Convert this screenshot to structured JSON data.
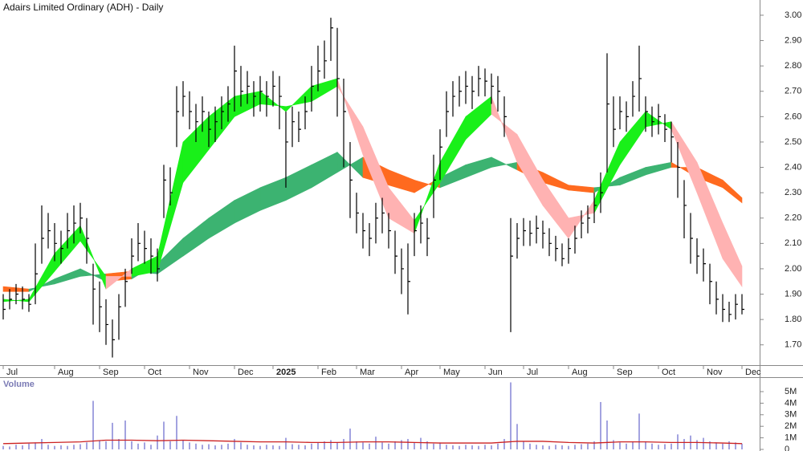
{
  "chart_data": {
    "type": "ohlc",
    "title": "Adairs Limited Ordinary (ADH) - Daily",
    "xlim": [
      -0.5,
      115.5
    ],
    "xticks": [
      {
        "value": 0,
        "label": "Jul"
      },
      {
        "value": 8,
        "label": "Aug"
      },
      {
        "value": 15,
        "label": "Sep"
      },
      {
        "value": 22,
        "label": "Oct"
      },
      {
        "value": 29,
        "label": "Nov"
      },
      {
        "value": 36,
        "label": "Dec"
      },
      {
        "value": 42,
        "label": "2025"
      },
      {
        "value": 49,
        "label": "Feb"
      },
      {
        "value": 55,
        "label": "Mar"
      },
      {
        "value": 62,
        "label": "Apr"
      },
      {
        "value": 68,
        "label": "May"
      },
      {
        "value": 75,
        "label": "Jun"
      },
      {
        "value": 81,
        "label": "Jul"
      },
      {
        "value": 88,
        "label": "Aug"
      },
      {
        "value": 95,
        "label": "Sep"
      },
      {
        "value": 102,
        "label": "Oct"
      },
      {
        "value": 109,
        "label": "Nov"
      },
      {
        "value": 115,
        "label": "Dec"
      }
    ],
    "ylim": [
      1.62,
      3.06
    ],
    "yticks": [
      {
        "value": 1.7,
        "label": "1.70"
      },
      {
        "value": 1.8,
        "label": "1.80"
      },
      {
        "value": 1.9,
        "label": "1.90"
      },
      {
        "value": 2.0,
        "label": "2.00"
      },
      {
        "value": 2.1,
        "label": "2.10"
      },
      {
        "value": 2.2,
        "label": "2.20"
      },
      {
        "value": 2.3,
        "label": "2.30"
      },
      {
        "value": 2.4,
        "label": "2.40"
      },
      {
        "value": 2.5,
        "label": "2.50"
      },
      {
        "value": 2.6,
        "label": "2.60"
      },
      {
        "value": 2.7,
        "label": "2.70"
      },
      {
        "value": 2.8,
        "label": "2.80"
      },
      {
        "value": 2.9,
        "label": "2.90"
      },
      {
        "value": 3.0,
        "label": "3.00"
      }
    ],
    "price": {
      "color": "#000000",
      "high": [
        1.9,
        1.92,
        1.94,
        1.93,
        1.9,
        2.1,
        2.25,
        2.22,
        2.18,
        2.15,
        2.22,
        2.25,
        2.26,
        2.2,
        2.02,
        1.95,
        1.88,
        1.8,
        1.9,
        2.0,
        2.12,
        2.18,
        2.15,
        2.12,
        2.08,
        2.41,
        2.4,
        2.72,
        2.74,
        2.7,
        2.65,
        2.68,
        2.62,
        2.64,
        2.68,
        2.72,
        2.88,
        2.8,
        2.78,
        2.74,
        2.76,
        2.74,
        2.78,
        2.76,
        2.62,
        2.64,
        2.62,
        2.68,
        2.8,
        2.88,
        2.9,
        2.99,
        2.95,
        2.75,
        2.5,
        2.3,
        2.22,
        2.18,
        2.26,
        2.28,
        2.22,
        2.15,
        2.08,
        2.1,
        2.22,
        2.25,
        2.2,
        2.45,
        2.55,
        2.7,
        2.74,
        2.76,
        2.78,
        2.76,
        2.8,
        2.79,
        2.77,
        2.76,
        2.68,
        2.2,
        2.18,
        2.2,
        2.19,
        2.21,
        2.19,
        2.16,
        2.13,
        2.1,
        2.12,
        2.17,
        2.23,
        2.25,
        2.3,
        2.38,
        2.85,
        2.68,
        2.68,
        2.66,
        2.74,
        2.88,
        2.68,
        2.64,
        2.65,
        2.61,
        2.58,
        2.5,
        2.35,
        2.22,
        2.12,
        2.08,
        2.02,
        1.95,
        1.9,
        1.87,
        1.9,
        1.9
      ],
      "low": [
        1.8,
        1.84,
        1.86,
        1.84,
        1.83,
        1.86,
        2.02,
        2.08,
        2.03,
        2.02,
        2.08,
        2.1,
        2.14,
        2.02,
        1.78,
        1.75,
        1.7,
        1.65,
        1.72,
        1.85,
        1.98,
        2.03,
        2.02,
        1.98,
        1.95,
        2.2,
        2.25,
        2.48,
        2.6,
        2.55,
        2.5,
        2.54,
        2.48,
        2.5,
        2.55,
        2.58,
        2.62,
        2.64,
        2.65,
        2.6,
        2.62,
        2.6,
        2.64,
        2.55,
        2.32,
        2.48,
        2.5,
        2.55,
        2.62,
        2.7,
        2.75,
        2.82,
        2.6,
        2.4,
        2.2,
        2.14,
        2.08,
        2.05,
        2.1,
        2.14,
        2.08,
        1.98,
        1.9,
        1.82,
        2.05,
        2.1,
        2.05,
        2.2,
        2.35,
        2.52,
        2.6,
        2.64,
        2.65,
        2.63,
        2.68,
        2.68,
        2.65,
        2.62,
        2.52,
        1.75,
        2.04,
        2.09,
        2.09,
        2.1,
        2.08,
        2.05,
        2.03,
        2.01,
        2.02,
        2.06,
        2.12,
        2.14,
        2.18,
        2.22,
        2.38,
        2.48,
        2.55,
        2.54,
        2.6,
        2.62,
        2.54,
        2.52,
        2.53,
        2.5,
        2.42,
        2.28,
        2.12,
        2.02,
        1.98,
        1.95,
        1.86,
        1.82,
        1.79,
        1.79,
        1.8,
        1.82
      ],
      "close": [
        1.84,
        1.88,
        1.9,
        1.88,
        1.86,
        1.98,
        2.12,
        2.15,
        2.1,
        2.08,
        2.15,
        2.18,
        2.2,
        2.12,
        1.92,
        1.85,
        1.78,
        1.72,
        1.85,
        1.95,
        2.05,
        2.1,
        2.08,
        2.05,
        2.0,
        2.35,
        2.3,
        2.62,
        2.68,
        2.62,
        2.58,
        2.62,
        2.55,
        2.58,
        2.62,
        2.65,
        2.78,
        2.7,
        2.72,
        2.68,
        2.7,
        2.68,
        2.72,
        2.68,
        2.5,
        2.58,
        2.55,
        2.62,
        2.72,
        2.78,
        2.82,
        2.95,
        2.75,
        2.62,
        2.35,
        2.22,
        2.15,
        2.12,
        2.2,
        2.22,
        2.15,
        2.05,
        2.0,
        1.95,
        2.15,
        2.18,
        2.12,
        2.35,
        2.48,
        2.62,
        2.68,
        2.7,
        2.72,
        2.7,
        2.75,
        2.74,
        2.72,
        2.7,
        2.6,
        2.05,
        2.12,
        2.15,
        2.14,
        2.16,
        2.14,
        2.1,
        2.08,
        2.04,
        2.08,
        2.12,
        2.18,
        2.2,
        2.25,
        2.3,
        2.65,
        2.55,
        2.62,
        2.6,
        2.68,
        2.75,
        2.62,
        2.58,
        2.6,
        2.55,
        2.52,
        2.4,
        2.25,
        2.12,
        2.05,
        2.02,
        1.95,
        1.88,
        1.84,
        1.82,
        1.86,
        1.84
      ]
    },
    "short_ribbon": {
      "up_color": "#19f019",
      "down_color": "#ffb2b2",
      "x": [
        0,
        4,
        8,
        12,
        16,
        20,
        24,
        28,
        32,
        36,
        40,
        44,
        48,
        52,
        56,
        60,
        64,
        68,
        72,
        76,
        80,
        84,
        88,
        92,
        96,
        100,
        104,
        108,
        112,
        115
      ],
      "fast": [
        1.87,
        1.88,
        2.06,
        2.17,
        1.92,
        2.0,
        2.05,
        2.5,
        2.6,
        2.68,
        2.7,
        2.62,
        2.72,
        2.75,
        2.45,
        2.2,
        2.14,
        2.42,
        2.6,
        2.68,
        2.42,
        2.25,
        2.12,
        2.27,
        2.5,
        2.62,
        2.55,
        2.3,
        2.04,
        1.93
      ],
      "slow": [
        1.88,
        1.87,
        1.99,
        2.11,
        1.97,
        1.97,
        1.99,
        2.34,
        2.47,
        2.6,
        2.65,
        2.64,
        2.66,
        2.72,
        2.56,
        2.32,
        2.19,
        2.34,
        2.51,
        2.61,
        2.53,
        2.35,
        2.2,
        2.22,
        2.41,
        2.56,
        2.58,
        2.42,
        2.18,
        2.01
      ]
    },
    "long_ribbon": {
      "up_color": "#3cb371",
      "down_color": "#ff6a1f",
      "x": [
        0,
        4,
        8,
        12,
        16,
        20,
        24,
        28,
        32,
        36,
        40,
        44,
        48,
        52,
        56,
        60,
        64,
        68,
        72,
        76,
        80,
        84,
        88,
        92,
        96,
        100,
        104,
        108,
        112,
        115
      ],
      "fast": [
        1.91,
        1.91,
        1.96,
        2.0,
        1.95,
        1.96,
        2.02,
        2.12,
        2.2,
        2.27,
        2.32,
        2.36,
        2.41,
        2.46,
        2.36,
        2.33,
        2.3,
        2.36,
        2.41,
        2.44,
        2.39,
        2.34,
        2.31,
        2.3,
        2.36,
        2.4,
        2.42,
        2.36,
        2.32,
        2.26
      ],
      "slow": [
        1.93,
        1.92,
        1.94,
        1.97,
        1.98,
        1.99,
        1.98,
        2.05,
        2.12,
        2.18,
        2.23,
        2.27,
        2.32,
        2.38,
        2.44,
        2.39,
        2.35,
        2.32,
        2.36,
        2.4,
        2.42,
        2.38,
        2.33,
        2.32,
        2.33,
        2.37,
        2.4,
        2.4,
        2.35,
        2.28
      ]
    },
    "volume": {
      "label": "Volume",
      "color": "#6666cc",
      "ylim": [
        0,
        6250000
      ],
      "yticks": [
        0,
        {
          "value": 1000000,
          "label": "1M"
        },
        {
          "value": 2000000,
          "label": "2M"
        },
        {
          "value": 3000000,
          "label": "3M"
        },
        {
          "value": 4000000,
          "label": "4M"
        },
        {
          "value": 5000000,
          "label": "5M"
        }
      ],
      "values": [
        300000,
        250000,
        400000,
        350000,
        500000,
        600000,
        900000,
        400000,
        300000,
        350000,
        300000,
        400000,
        450000,
        600000,
        4200000,
        800000,
        700000,
        2300000,
        900000,
        2500000,
        700000,
        500000,
        600000,
        400000,
        1200000,
        2400000,
        700000,
        2900000,
        800000,
        600000,
        500000,
        400000,
        450000,
        350000,
        400000,
        500000,
        900000,
        600000,
        400000,
        350000,
        300000,
        400000,
        350000,
        300000,
        1000000,
        450000,
        400000,
        350000,
        500000,
        600000,
        700000,
        800000,
        600000,
        900000,
        1800000,
        700000,
        600000,
        500000,
        1100000,
        600000,
        500000,
        700000,
        800000,
        900000,
        600000,
        1000000,
        700000,
        500000,
        600000,
        400000,
        350000,
        300000,
        400000,
        350000,
        300000,
        400000,
        350000,
        500000,
        900000,
        5800000,
        2200000,
        700000,
        500000,
        400000,
        350000,
        300000,
        400000,
        350000,
        300000,
        400000,
        450000,
        500000,
        700000,
        4100000,
        2500000,
        800000,
        600000,
        500000,
        700000,
        3100000,
        700000,
        500000,
        400000,
        450000,
        500000,
        1300000,
        900000,
        1200000,
        800000,
        1000000,
        700000,
        600000,
        500000,
        700000,
        600000,
        500000
      ],
      "ma": {
        "color": "#cc2222",
        "x": [
          0,
          4,
          8,
          12,
          16,
          20,
          24,
          28,
          32,
          36,
          40,
          44,
          48,
          52,
          56,
          60,
          64,
          68,
          72,
          76,
          80,
          84,
          88,
          92,
          96,
          100,
          104,
          108,
          112,
          115
        ],
        "values": [
          500000,
          550000,
          600000,
          650000,
          800000,
          800000,
          750000,
          800000,
          750000,
          700000,
          650000,
          650000,
          600000,
          600000,
          650000,
          650000,
          600000,
          550000,
          550000,
          550000,
          700000,
          700000,
          600000,
          550000,
          650000,
          650000,
          600000,
          600000,
          550000,
          500000
        ]
      }
    }
  }
}
